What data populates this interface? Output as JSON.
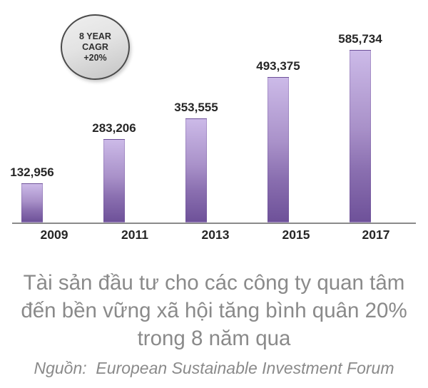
{
  "chart_data": {
    "type": "bar",
    "categories": [
      "2009",
      "2011",
      "2013",
      "2015",
      "2017"
    ],
    "values": [
      132956,
      283206,
      353555,
      493375,
      585734
    ],
    "data_labels": [
      "132,956",
      "283,206",
      "353,555",
      "493,375",
      "585,734"
    ],
    "title": "",
    "xlabel": "",
    "ylabel": "",
    "ylim": [
      0,
      600000
    ],
    "grid": false,
    "legend": "none",
    "bar_color_top": "#ccbae8",
    "bar_color_bottom": "#6e5199",
    "axis_color": "#8a8a8a"
  },
  "badge": {
    "line1": "8 YEAR",
    "line2": "CAGR",
    "line3": "+20%"
  },
  "caption": {
    "line1": "Tài sản đầu tư cho các công ty quan tâm",
    "line2": "đến bền vững xã hội tăng bình quân 20%",
    "line3": "trong 8 năm qua"
  },
  "source": "Nguồn:  European Sustainable Investment Forum",
  "colors": {
    "label_text": "#262626",
    "caption_text": "#8a8a8a",
    "badge_border": "#4a4a4a",
    "badge_fill": "#e3e3e3"
  }
}
